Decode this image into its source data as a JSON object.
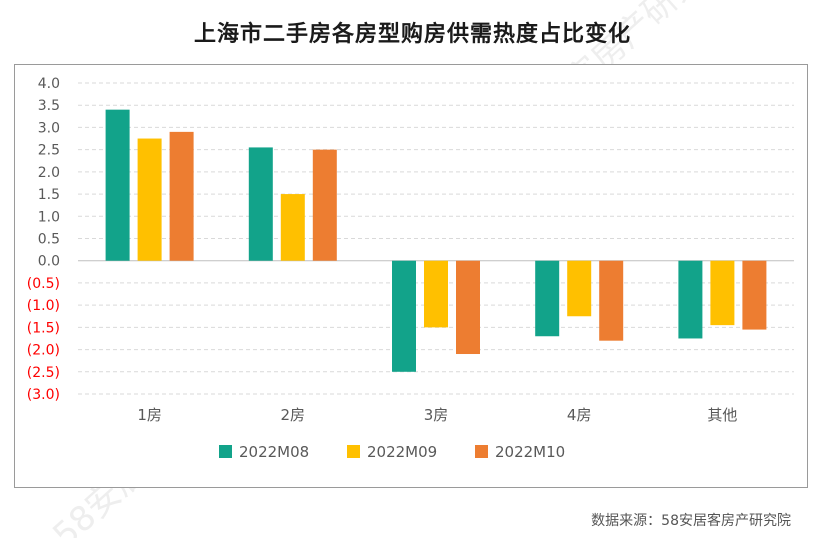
{
  "title": "上海市二手房各房型购房供需热度占比变化",
  "source": "数据来源：58安居客房产研究院",
  "watermark": "58安居客房产研究院",
  "chart_data": {
    "type": "bar",
    "categories": [
      "1房",
      "2房",
      "3房",
      "4房",
      "其他"
    ],
    "series": [
      {
        "name": "2022M08",
        "color": "#12A38A",
        "values": [
          3.4,
          2.55,
          -2.5,
          -1.7,
          -1.75
        ]
      },
      {
        "name": "2022M09",
        "color": "#FFC000",
        "values": [
          2.75,
          1.5,
          -1.5,
          -1.25,
          -1.45
        ]
      },
      {
        "name": "2022M10",
        "color": "#ED7D31",
        "values": [
          2.9,
          2.5,
          -2.1,
          -1.8,
          -1.55
        ]
      }
    ],
    "ylim": [
      -3.0,
      4.0
    ],
    "yticks": [
      "4.0",
      "3.5",
      "3.0",
      "2.5",
      "2.0",
      "1.5",
      "1.0",
      "0.5",
      "0.0",
      "(0.5)",
      "(1.0)",
      "(1.5)",
      "(2.0)",
      "(2.5)",
      "(3.0)"
    ],
    "negative_tick_color": "#FF0000",
    "grid": "horizontal dashed",
    "legend_position": "bottom"
  }
}
